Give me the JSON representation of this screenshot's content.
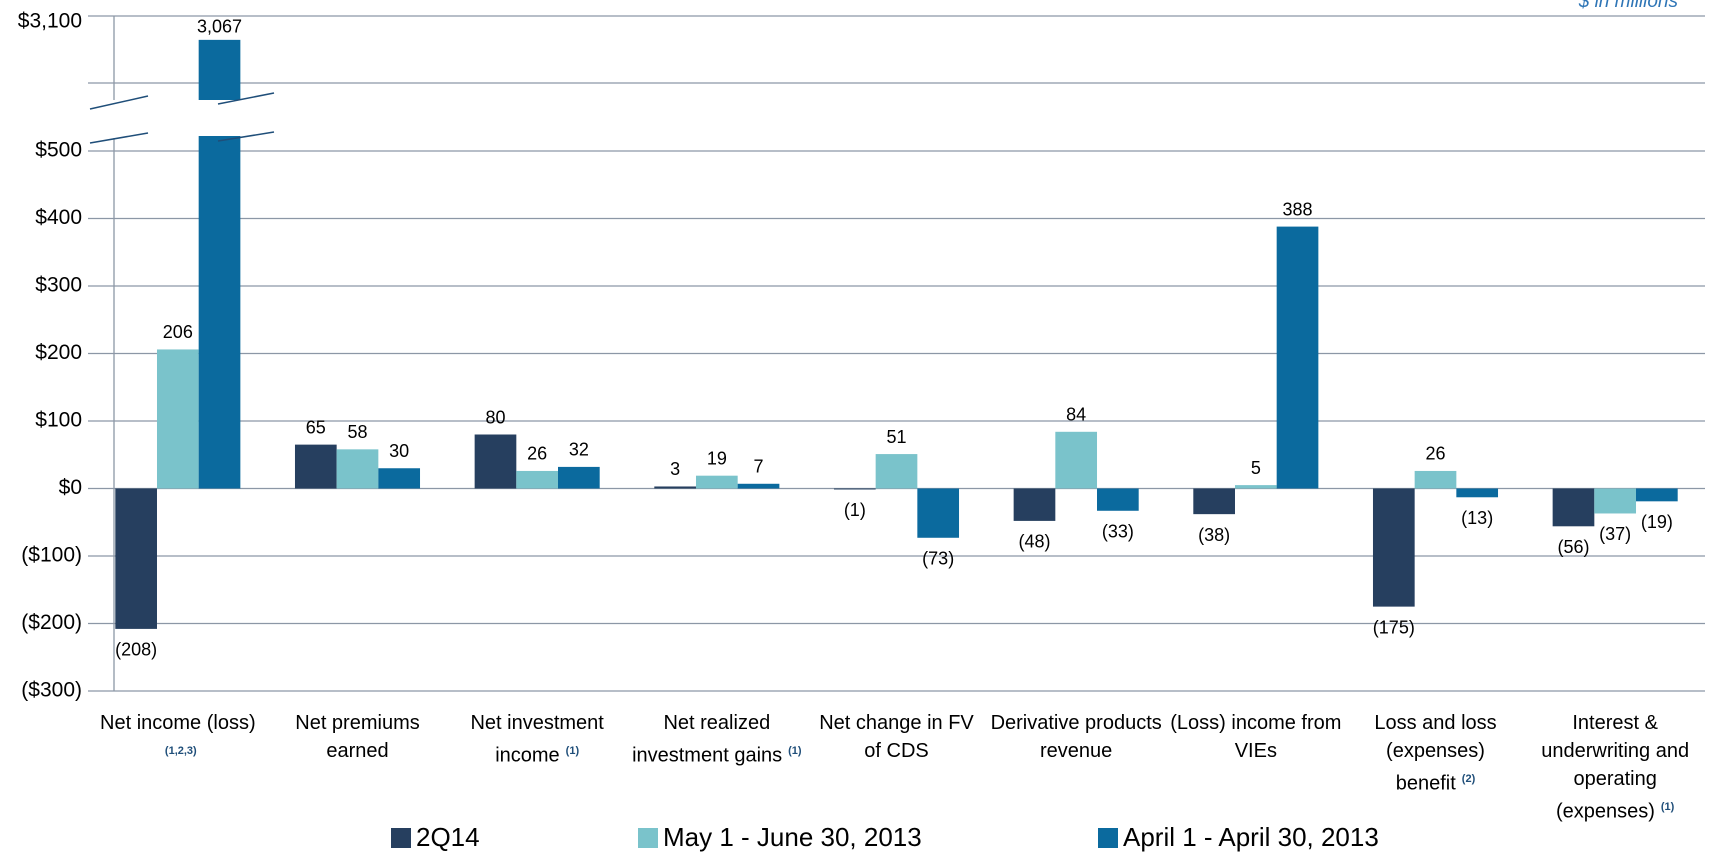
{
  "chart_data": {
    "type": "bar",
    "y_axis_note": "$ in millions",
    "categories": [
      "Net income (loss)",
      "Net premiums earned",
      "Net investment income",
      "Net realized investment gains",
      "Net change in FV of CDS",
      "Derivative products revenue",
      "(Loss) income from VIEs",
      "Loss and loss (expenses) benefit",
      "Interest & underwriting and operating (expenses)"
    ],
    "footnotes": [
      "(1,2,3)",
      null,
      "(1)",
      "(1)",
      null,
      null,
      null,
      "(2)",
      "(1)"
    ],
    "series": [
      {
        "name": "2Q14",
        "color": "#263f5f",
        "values": [
          -208,
          65,
          80,
          3,
          -1,
          -48,
          -38,
          -175,
          -56
        ],
        "value_labels": [
          "(208)",
          "65",
          "80",
          "3",
          "(1)",
          "(48)",
          "(38)",
          "(175)",
          "(56)"
        ]
      },
      {
        "name": "May 1 - June 30, 2013",
        "color": "#7ac3cb",
        "values": [
          206,
          58,
          26,
          19,
          51,
          84,
          5,
          26,
          -37
        ],
        "value_labels": [
          "206",
          "58",
          "26",
          "19",
          "51",
          "84",
          "5",
          "26",
          "(37)"
        ]
      },
      {
        "name": "April 1 - April 30, 2013",
        "color": "#0b6a9e",
        "values": [
          3067,
          30,
          32,
          7,
          -73,
          -33,
          388,
          -13,
          -19
        ],
        "value_labels": [
          "3,067",
          "30",
          "32",
          "7",
          "(73)",
          "(33)",
          "388",
          "(13)",
          "(19)"
        ]
      }
    ],
    "ylim": [
      -300,
      500
    ],
    "yticks": [
      {
        "value": -300,
        "label": "($300)"
      },
      {
        "value": -200,
        "label": "($200)"
      },
      {
        "value": -100,
        "label": "($100)"
      },
      {
        "value": 0,
        "label": "$0"
      },
      {
        "value": 100,
        "label": "$100"
      },
      {
        "value": 200,
        "label": "$200"
      },
      {
        "value": 300,
        "label": "$300"
      },
      {
        "value": 400,
        "label": "$400"
      },
      {
        "value": 500,
        "label": "$500"
      }
    ],
    "upper_ylim": [
      2970,
      3100
    ],
    "upper_yticks": [
      {
        "value": 3100,
        "label": "$3,100"
      }
    ],
    "grid": true,
    "legend": "bottom"
  }
}
